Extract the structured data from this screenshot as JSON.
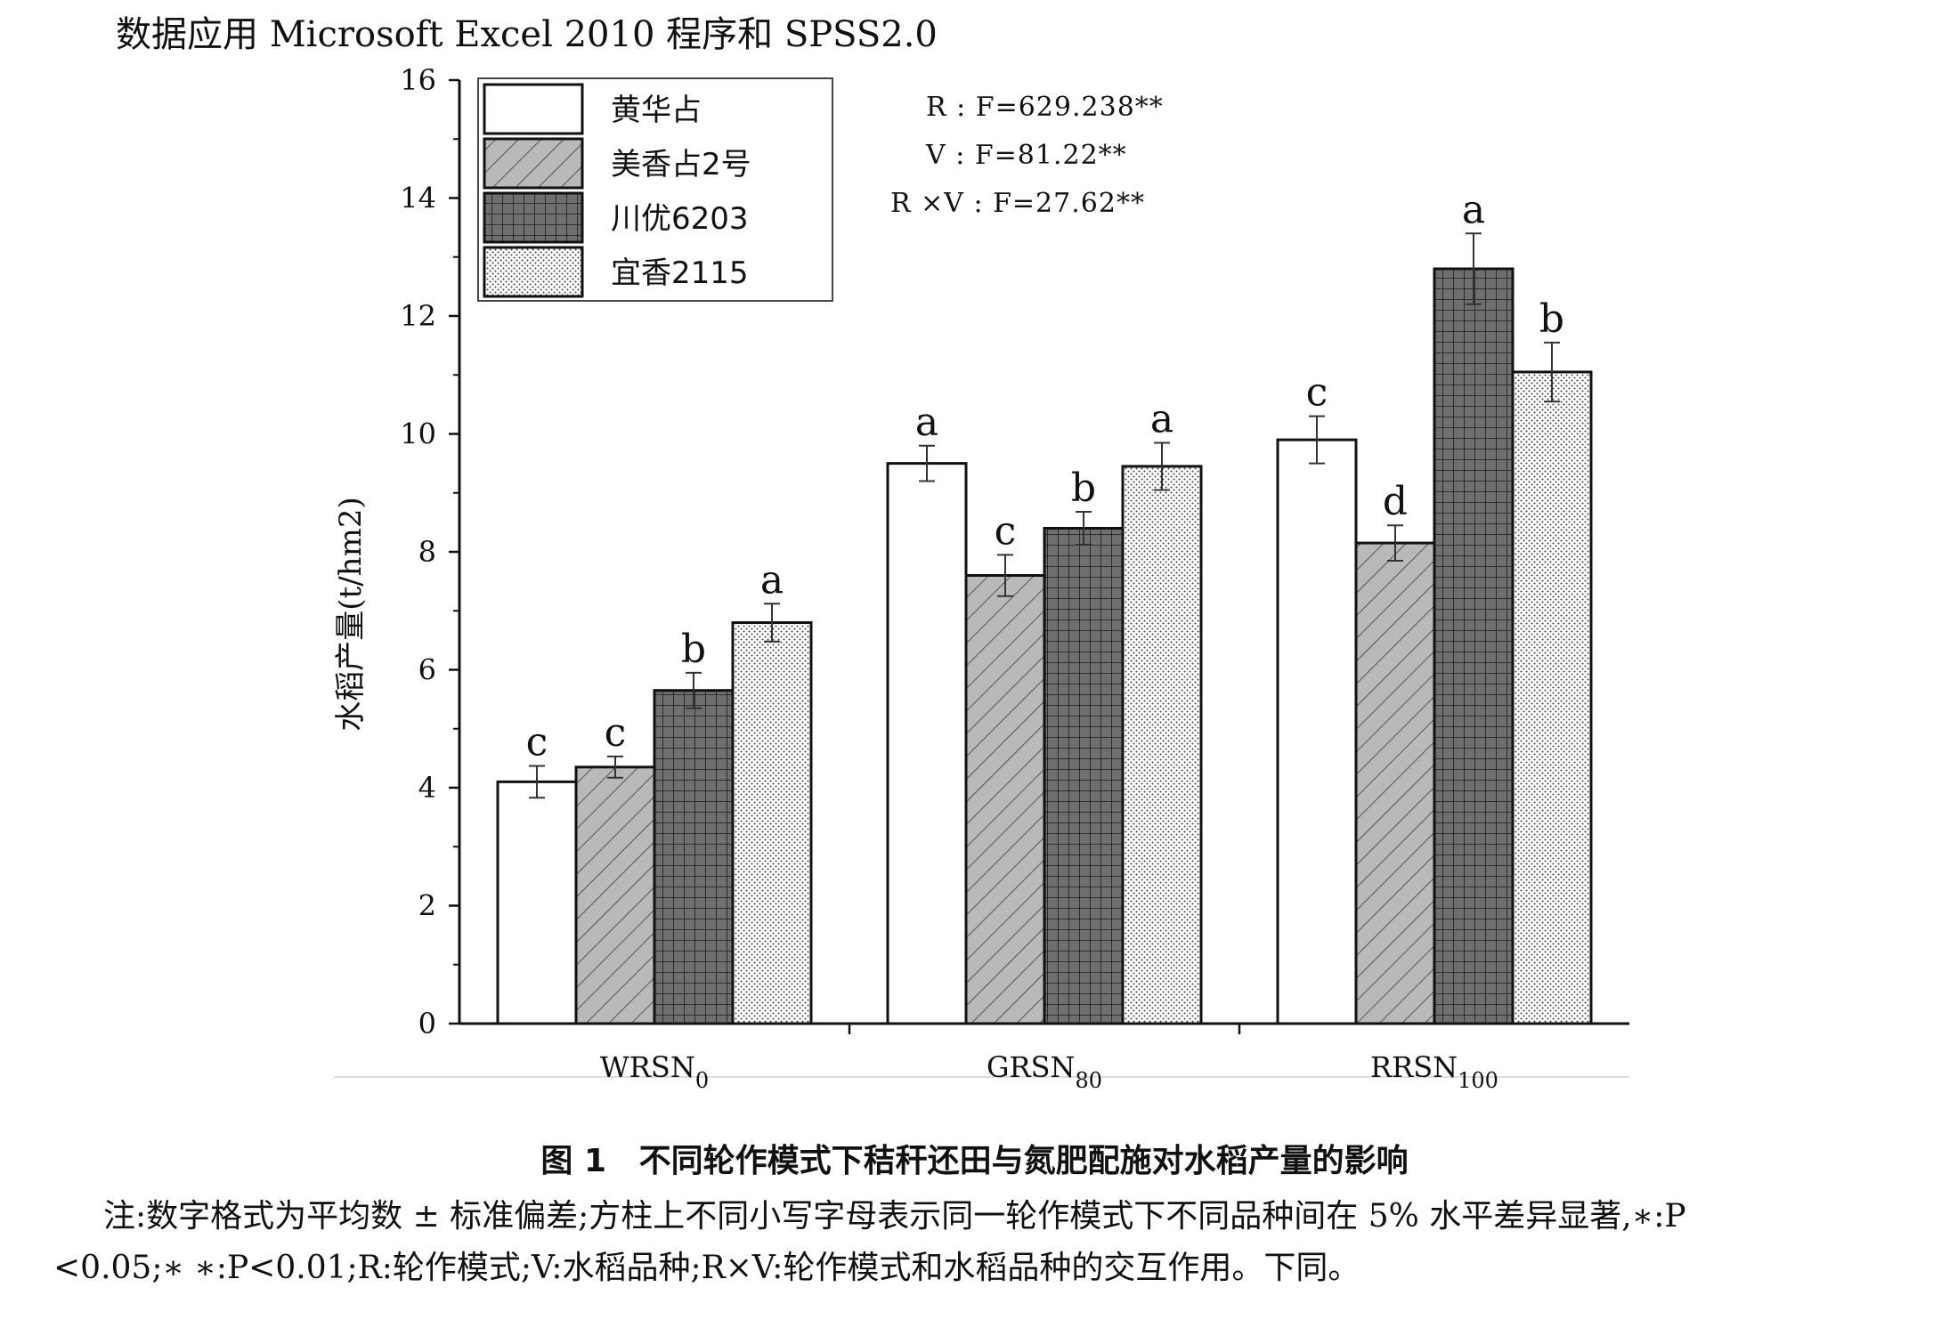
{
  "header_text": "数据应用 Microsoft Excel 2010 程序和 SPSS2.0",
  "chart_data": {
    "type": "bar",
    "ylabel": "水稻产量(t/hm2)",
    "ylim": [
      0,
      16
    ],
    "yticks": [
      "0",
      "2",
      "4",
      "6",
      "8",
      "10",
      "12",
      "14",
      "16"
    ],
    "grid": false,
    "legend_position": "top-left",
    "categories": [
      {
        "base": "WRSN",
        "sub": "0"
      },
      {
        "base": "GRSN",
        "sub": "80"
      },
      {
        "base": "RRSN",
        "sub": "100"
      }
    ],
    "series": [
      {
        "name": "黄华占",
        "pattern": "white",
        "values": [
          4.1,
          9.5,
          9.9
        ],
        "errors": [
          0.27,
          0.3,
          0.4
        ],
        "letters": [
          "c",
          "a",
          "c"
        ]
      },
      {
        "name": "美香占2号",
        "pattern": "diagonal-hatch",
        "values": [
          4.35,
          7.6,
          8.15
        ],
        "errors": [
          0.18,
          0.35,
          0.3
        ],
        "letters": [
          "c",
          "c",
          "d"
        ]
      },
      {
        "name": "川优6203",
        "pattern": "grid",
        "values": [
          5.65,
          8.4,
          12.8
        ],
        "errors": [
          0.3,
          0.28,
          0.6
        ],
        "letters": [
          "b",
          "b",
          "a"
        ]
      },
      {
        "name": "宜香2115",
        "pattern": "dots",
        "values": [
          6.8,
          9.45,
          11.05
        ],
        "errors": [
          0.32,
          0.4,
          0.5
        ],
        "letters": [
          "a",
          "a",
          "b"
        ]
      }
    ],
    "stats": [
      "R : F=629.238**",
      "V : F=81.22**",
      "R  ×V : F=27.62**"
    ]
  },
  "caption": {
    "label": "图 1",
    "title": "不同轮作模式下秸秆还田与氮肥配施对水稻产量的影响"
  },
  "note": {
    "line1": "注:数字格式为平均数 ± 标准偏差;方柱上不同小写字母表示同一轮作模式下不同品种间在 5% 水平差异显著,∗:P",
    "line2": "<0.05;∗ ∗:P<0.01;R:轮作模式;V:水稻品种;R×V:轮作模式和水稻品种的交互作用。下同。"
  },
  "colors": {
    "bar_grey": "#b9b9b9",
    "bar_dark": "#6f6f6f",
    "axis": "#111111"
  }
}
